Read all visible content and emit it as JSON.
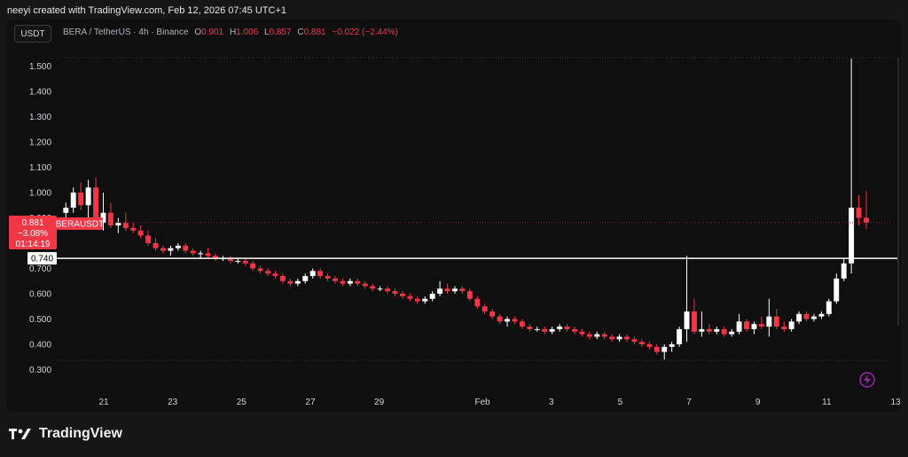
{
  "header": {
    "attribution": "neeyi created with TradingView.com, Feb 12, 2026 07:45 UTC+1"
  },
  "toolbar": {
    "currency_label": "USDT"
  },
  "legend": {
    "symbol": "BERA / TetherUS · 4h · Binance",
    "open_key": "O",
    "open_val": "0.901",
    "high_key": "H",
    "high_val": "1.006",
    "low_key": "L",
    "low_val": "0.857",
    "close_key": "C",
    "close_val": "0.881",
    "change": "−0.022 (−2.44%)"
  },
  "price_badge": {
    "price": "0.881",
    "change_pct": "−3.08%",
    "countdown": "01:14:19",
    "symbol_tag": "BERAUSDT"
  },
  "level_line": {
    "value": 0.74,
    "label": "0.740"
  },
  "branding": {
    "logo_text": "TradingView"
  },
  "colors": {
    "up": "#ffffff",
    "down": "#f23645",
    "background": "#0f0f0f",
    "grid_dots": "#3a3a3a",
    "accent_lightning": "#9c27b0"
  },
  "chart_data": {
    "type": "candlestick",
    "interval": "4h",
    "symbol": "BERAUSDT",
    "ylim": [
      0.28,
      1.56
    ],
    "y_ticks": [
      "1.500",
      "1.400",
      "1.300",
      "1.200",
      "1.100",
      "1.000",
      "0.900",
      "0.800",
      "0.700",
      "0.600",
      "0.500",
      "0.400",
      "0.300"
    ],
    "x_ticks": [
      {
        "label": "21",
        "day": 2
      },
      {
        "label": "23",
        "day": 4
      },
      {
        "label": "25",
        "day": 6
      },
      {
        "label": "27",
        "day": 8
      },
      {
        "label": "29",
        "day": 10
      },
      {
        "label": "Feb",
        "day": 13
      },
      {
        "label": "3",
        "day": 15
      },
      {
        "label": "5",
        "day": 17
      },
      {
        "label": "7",
        "day": 19
      },
      {
        "label": "9",
        "day": 21
      },
      {
        "label": "11",
        "day": 23
      },
      {
        "label": "13",
        "day": 25
      }
    ],
    "x_start_day": 0.9,
    "x_end_day": 25.0,
    "candles": [
      [
        0.92,
        0.96,
        0.89,
        0.94
      ],
      [
        0.94,
        1.02,
        0.92,
        1.0
      ],
      [
        1.0,
        1.04,
        0.93,
        0.95
      ],
      [
        0.95,
        1.05,
        0.9,
        1.02
      ],
      [
        1.02,
        1.06,
        0.86,
        0.88
      ],
      [
        0.88,
        1.0,
        0.85,
        0.92
      ],
      [
        0.92,
        0.96,
        0.86,
        0.87
      ],
      [
        0.87,
        0.9,
        0.84,
        0.88
      ],
      [
        0.88,
        0.92,
        0.85,
        0.86
      ],
      [
        0.86,
        0.88,
        0.84,
        0.85
      ],
      [
        0.85,
        0.87,
        0.82,
        0.83
      ],
      [
        0.83,
        0.85,
        0.79,
        0.8
      ],
      [
        0.8,
        0.82,
        0.77,
        0.78
      ],
      [
        0.78,
        0.79,
        0.76,
        0.77
      ],
      [
        0.77,
        0.79,
        0.75,
        0.78
      ],
      [
        0.78,
        0.8,
        0.77,
        0.79
      ],
      [
        0.79,
        0.8,
        0.76,
        0.77
      ],
      [
        0.77,
        0.78,
        0.75,
        0.76
      ],
      [
        0.76,
        0.77,
        0.74,
        0.76
      ],
      [
        0.76,
        0.78,
        0.74,
        0.75
      ],
      [
        0.75,
        0.76,
        0.73,
        0.74
      ],
      [
        0.74,
        0.75,
        0.73,
        0.74
      ],
      [
        0.74,
        0.75,
        0.72,
        0.73
      ],
      [
        0.73,
        0.74,
        0.72,
        0.73
      ],
      [
        0.73,
        0.74,
        0.71,
        0.72
      ],
      [
        0.72,
        0.73,
        0.69,
        0.7
      ],
      [
        0.7,
        0.71,
        0.68,
        0.69
      ],
      [
        0.69,
        0.7,
        0.67,
        0.68
      ],
      [
        0.68,
        0.69,
        0.66,
        0.67
      ],
      [
        0.67,
        0.68,
        0.64,
        0.65
      ],
      [
        0.65,
        0.66,
        0.63,
        0.64
      ],
      [
        0.64,
        0.66,
        0.63,
        0.65
      ],
      [
        0.65,
        0.68,
        0.64,
        0.67
      ],
      [
        0.67,
        0.7,
        0.66,
        0.69
      ],
      [
        0.69,
        0.7,
        0.66,
        0.67
      ],
      [
        0.67,
        0.68,
        0.65,
        0.66
      ],
      [
        0.66,
        0.67,
        0.64,
        0.65
      ],
      [
        0.65,
        0.66,
        0.63,
        0.64
      ],
      [
        0.64,
        0.66,
        0.63,
        0.65
      ],
      [
        0.65,
        0.66,
        0.63,
        0.64
      ],
      [
        0.64,
        0.65,
        0.62,
        0.63
      ],
      [
        0.63,
        0.64,
        0.61,
        0.62
      ],
      [
        0.62,
        0.63,
        0.61,
        0.62
      ],
      [
        0.62,
        0.63,
        0.6,
        0.61
      ],
      [
        0.61,
        0.62,
        0.59,
        0.6
      ],
      [
        0.6,
        0.61,
        0.58,
        0.59
      ],
      [
        0.59,
        0.6,
        0.57,
        0.58
      ],
      [
        0.58,
        0.59,
        0.56,
        0.57
      ],
      [
        0.57,
        0.59,
        0.56,
        0.58
      ],
      [
        0.58,
        0.61,
        0.57,
        0.6
      ],
      [
        0.6,
        0.65,
        0.59,
        0.62
      ],
      [
        0.62,
        0.64,
        0.6,
        0.61
      ],
      [
        0.61,
        0.63,
        0.6,
        0.62
      ],
      [
        0.62,
        0.63,
        0.6,
        0.61
      ],
      [
        0.61,
        0.62,
        0.57,
        0.58
      ],
      [
        0.58,
        0.59,
        0.54,
        0.55
      ],
      [
        0.55,
        0.56,
        0.52,
        0.53
      ],
      [
        0.53,
        0.54,
        0.5,
        0.51
      ],
      [
        0.51,
        0.52,
        0.48,
        0.49
      ],
      [
        0.49,
        0.51,
        0.47,
        0.5
      ],
      [
        0.5,
        0.51,
        0.48,
        0.49
      ],
      [
        0.49,
        0.5,
        0.46,
        0.47
      ],
      [
        0.47,
        0.48,
        0.45,
        0.46
      ],
      [
        0.46,
        0.47,
        0.45,
        0.46
      ],
      [
        0.46,
        0.47,
        0.44,
        0.45
      ],
      [
        0.45,
        0.47,
        0.44,
        0.46
      ],
      [
        0.46,
        0.48,
        0.45,
        0.47
      ],
      [
        0.47,
        0.48,
        0.45,
        0.46
      ],
      [
        0.46,
        0.47,
        0.44,
        0.45
      ],
      [
        0.45,
        0.46,
        0.43,
        0.44
      ],
      [
        0.44,
        0.45,
        0.42,
        0.43
      ],
      [
        0.43,
        0.45,
        0.42,
        0.44
      ],
      [
        0.44,
        0.45,
        0.42,
        0.43
      ],
      [
        0.43,
        0.44,
        0.41,
        0.42
      ],
      [
        0.42,
        0.44,
        0.41,
        0.43
      ],
      [
        0.43,
        0.44,
        0.41,
        0.42
      ],
      [
        0.42,
        0.43,
        0.4,
        0.41
      ],
      [
        0.41,
        0.42,
        0.39,
        0.4
      ],
      [
        0.4,
        0.41,
        0.38,
        0.39
      ],
      [
        0.39,
        0.4,
        0.36,
        0.37
      ],
      [
        0.37,
        0.4,
        0.34,
        0.39
      ],
      [
        0.39,
        0.41,
        0.37,
        0.4
      ],
      [
        0.4,
        0.47,
        0.39,
        0.46
      ],
      [
        0.46,
        0.75,
        0.41,
        0.53
      ],
      [
        0.53,
        0.58,
        0.44,
        0.45
      ],
      [
        0.45,
        0.53,
        0.43,
        0.46
      ],
      [
        0.46,
        0.48,
        0.44,
        0.45
      ],
      [
        0.45,
        0.47,
        0.44,
        0.46
      ],
      [
        0.46,
        0.47,
        0.43,
        0.44
      ],
      [
        0.44,
        0.46,
        0.43,
        0.45
      ],
      [
        0.45,
        0.52,
        0.44,
        0.49
      ],
      [
        0.49,
        0.5,
        0.45,
        0.46
      ],
      [
        0.46,
        0.49,
        0.44,
        0.48
      ],
      [
        0.48,
        0.51,
        0.46,
        0.47
      ],
      [
        0.47,
        0.58,
        0.43,
        0.51
      ],
      [
        0.51,
        0.54,
        0.46,
        0.47
      ],
      [
        0.47,
        0.49,
        0.45,
        0.46
      ],
      [
        0.46,
        0.5,
        0.45,
        0.49
      ],
      [
        0.49,
        0.53,
        0.48,
        0.52
      ],
      [
        0.52,
        0.53,
        0.49,
        0.5
      ],
      [
        0.5,
        0.52,
        0.49,
        0.51
      ],
      [
        0.51,
        0.53,
        0.5,
        0.52
      ],
      [
        0.52,
        0.58,
        0.51,
        0.57
      ],
      [
        0.57,
        0.68,
        0.56,
        0.66
      ],
      [
        0.66,
        0.74,
        0.65,
        0.72
      ],
      [
        0.72,
        1.53,
        0.68,
        0.94
      ],
      [
        0.94,
        0.99,
        0.87,
        0.9
      ],
      [
        0.9,
        1.006,
        0.857,
        0.881
      ]
    ]
  }
}
